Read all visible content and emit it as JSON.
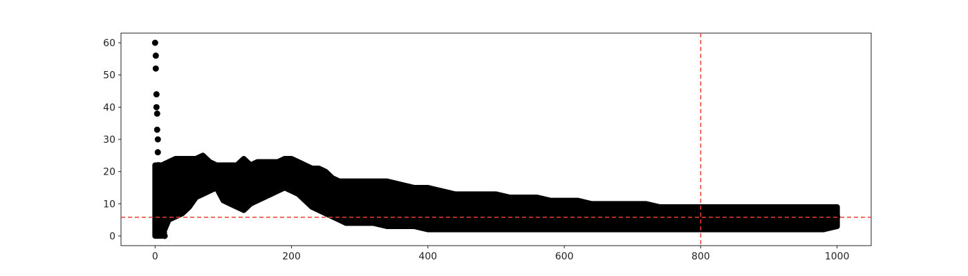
{
  "chart_data": {
    "type": "scatter",
    "title": "",
    "xlabel": "",
    "ylabel": "",
    "xlim": [
      -50,
      1050
    ],
    "ylim": [
      -3,
      63
    ],
    "x_ticks": [
      0,
      200,
      400,
      600,
      800,
      1000
    ],
    "y_ticks": [
      0,
      10,
      20,
      30,
      40,
      50,
      60
    ],
    "x_tick_labels": [
      "0",
      "200",
      "400",
      "600",
      "800",
      "1000"
    ],
    "y_tick_labels": [
      "0",
      "10",
      "20",
      "30",
      "40",
      "50",
      "60"
    ],
    "grid": false,
    "legend": "none",
    "marker_color": "#000000",
    "reference_lines": [
      {
        "orientation": "vertical",
        "value": 800,
        "color": "#e8412c",
        "style": "dashed"
      },
      {
        "orientation": "horizontal",
        "value": 5.8,
        "color": "#e8412c",
        "style": "dashed"
      }
    ],
    "series": [
      {
        "x": [
          0,
          1,
          1,
          2,
          2,
          3,
          3,
          4,
          4,
          5,
          5,
          6,
          7,
          8,
          9,
          10,
          11,
          12,
          13,
          14,
          15,
          16,
          18,
          20,
          22,
          25,
          30,
          35,
          40,
          45,
          50,
          55,
          60,
          65,
          70,
          75,
          80,
          85,
          90,
          95,
          100,
          105,
          110,
          115,
          120,
          125,
          130,
          135,
          140,
          145,
          150,
          155,
          160,
          165,
          170,
          175,
          180,
          185,
          190,
          195,
          200,
          205,
          210,
          215,
          220,
          225,
          230,
          235,
          240,
          245,
          250,
          255,
          260,
          265,
          270,
          275,
          280,
          285,
          290,
          295,
          300,
          305,
          310,
          315,
          320,
          325,
          330,
          335,
          340,
          345,
          350,
          355,
          360,
          370,
          380,
          390,
          400,
          410,
          420,
          430,
          440,
          450,
          460,
          470,
          480,
          490,
          500,
          510,
          520,
          530,
          540,
          550,
          560,
          570,
          580,
          590,
          600,
          610,
          620,
          630,
          640,
          650,
          660,
          670,
          680,
          690,
          700,
          710,
          720,
          730,
          740,
          750,
          760,
          770,
          780,
          790,
          800,
          810,
          820,
          830,
          840,
          850,
          860,
          870,
          880,
          890,
          900,
          910,
          920,
          930,
          940,
          950,
          960,
          970,
          980,
          990,
          1000
        ],
        "y": [
          60,
          56,
          52,
          44,
          40,
          38,
          33,
          30,
          26,
          22,
          20,
          18,
          15,
          12,
          10,
          8,
          5,
          3,
          1,
          0,
          20,
          18,
          22,
          19,
          17,
          15,
          14,
          16,
          18,
          19,
          20,
          21,
          20,
          22,
          23,
          22,
          21,
          20,
          19,
          18,
          17,
          16,
          15,
          14,
          15,
          16,
          17,
          18,
          14,
          15,
          16,
          17,
          18,
          19,
          20,
          19,
          18,
          19,
          20,
          21,
          20,
          19,
          18,
          17,
          16,
          15,
          14,
          13,
          13,
          12,
          12,
          11,
          11,
          10,
          10,
          10,
          11,
          11,
          10,
          10,
          10,
          10,
          11,
          11,
          10,
          10,
          9,
          9,
          9,
          9,
          9,
          8,
          8,
          8,
          8,
          8,
          8,
          7,
          7,
          7,
          7,
          7,
          7,
          7,
          7,
          7,
          7,
          7,
          7,
          7,
          6,
          6,
          6,
          6,
          6,
          6,
          6,
          6,
          6,
          6,
          6,
          6,
          6,
          6,
          6,
          6,
          6,
          6,
          6,
          6,
          6,
          6,
          6,
          6,
          6,
          5,
          5,
          5,
          5,
          5,
          5,
          5,
          5,
          5,
          5,
          5,
          5,
          5,
          6,
          6,
          6,
          6,
          6,
          6,
          6,
          6,
          6
        ]
      }
    ],
    "band": {
      "x": [
        0,
        10,
        20,
        30,
        40,
        50,
        60,
        70,
        80,
        90,
        100,
        110,
        120,
        130,
        140,
        150,
        160,
        170,
        180,
        190,
        200,
        210,
        220,
        230,
        240,
        250,
        260,
        270,
        280,
        290,
        300,
        320,
        340,
        360,
        380,
        400,
        420,
        440,
        460,
        480,
        500,
        520,
        540,
        560,
        580,
        600,
        620,
        640,
        660,
        680,
        700,
        720,
        740,
        760,
        780,
        800,
        820,
        840,
        860,
        880,
        900,
        920,
        940,
        960,
        980,
        1000
      ],
      "low": [
        0,
        0,
        5,
        6,
        7,
        9,
        12,
        13,
        14,
        15,
        11,
        10,
        9,
        8,
        10,
        11,
        12,
        13,
        14,
        15,
        14,
        13,
        11,
        9,
        8,
        7,
        6,
        5,
        4,
        4,
        4,
        4,
        3,
        3,
        3,
        2,
        2,
        2,
        2,
        2,
        2,
        2,
        2,
        2,
        2,
        2,
        2,
        2,
        2,
        2,
        2,
        2,
        2,
        2,
        2,
        2,
        2,
        2,
        2,
        2,
        2,
        2,
        2,
        2,
        2,
        3
      ],
      "high": [
        22,
        22,
        23,
        24,
        24,
        24,
        24,
        25,
        23,
        22,
        22,
        22,
        22,
        24,
        22,
        23,
        23,
        23,
        23,
        24,
        24,
        23,
        22,
        21,
        21,
        20,
        18,
        17,
        17,
        17,
        17,
        17,
        17,
        16,
        15,
        15,
        14,
        13,
        13,
        13,
        13,
        12,
        12,
        12,
        11,
        11,
        11,
        10,
        10,
        10,
        10,
        10,
        9,
        9,
        9,
        9,
        9,
        9,
        9,
        9,
        9,
        9,
        9,
        9,
        9,
        9
      ]
    }
  }
}
